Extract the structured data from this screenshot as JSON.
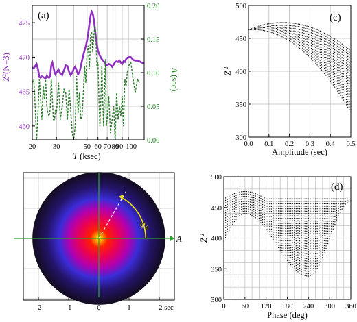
{
  "chart_data": [
    {
      "id": "a",
      "type": "line",
      "panel_label": "(a)",
      "xscale": "log",
      "xlim": [
        20,
        130
      ],
      "xlabel": "T (ksec)",
      "xlabel_parts": [
        "T",
        "(ksec)"
      ],
      "xticks": [
        20,
        30,
        40,
        50,
        60,
        70,
        80,
        90,
        100
      ],
      "xtick_labels": [
        "20",
        "",
        "30",
        "",
        "50",
        "60",
        "70",
        "80",
        "90100"
      ],
      "xtick_texts": [
        {
          "x": 20,
          "t": "20"
        },
        {
          "x": 30,
          "t": "30"
        },
        {
          "x": 50,
          "t": "50"
        },
        {
          "x": 60,
          "t": "60"
        },
        {
          "x": 70,
          "t": "70"
        },
        {
          "x": 80,
          "t": "80"
        },
        {
          "x": 90,
          "t": "90"
        },
        {
          "x": 100,
          "t": "100"
        }
      ],
      "ylim_left": [
        458,
        477.5
      ],
      "ylabel_left": "Z²(N=3)",
      "ylabel_left_parts": [
        "Z",
        "2",
        "(N=3)"
      ],
      "yticks_left": [
        460,
        465,
        470,
        475
      ],
      "ylim_right": [
        0,
        0.2
      ],
      "ylabel_right": "A (sec)",
      "ylabel_right_parts": [
        "A",
        "(sec)"
      ],
      "yticks_right": [
        0.0,
        0.05,
        0.1,
        0.15,
        0.2
      ],
      "ytick_right_labels": [
        "0.00",
        "0.05",
        "0.10",
        "0.15",
        "0.20"
      ],
      "colors": {
        "left_axis": "#8a2fb5",
        "right_axis": "#1f7a1f"
      },
      "series": [
        {
          "axis": "left",
          "style": "solid",
          "color": "#8e2fc0",
          "x": [
            20,
            20.5,
            21,
            21.5,
            22,
            22.5,
            23,
            23.5,
            24,
            24.5,
            25,
            25.5,
            26,
            26.5,
            27,
            27.5,
            28,
            28.5,
            29,
            29.5,
            30,
            31,
            32,
            33,
            34,
            35,
            36,
            37,
            38,
            39,
            40,
            41,
            42,
            43,
            44,
            45,
            46,
            47,
            48,
            49,
            50,
            51,
            52,
            53,
            54,
            55,
            56,
            57,
            58,
            59,
            60,
            62,
            64,
            66,
            68,
            70,
            72,
            74,
            76,
            78,
            80,
            82,
            84,
            86,
            88,
            90,
            92,
            94,
            96,
            98,
            100,
            104,
            108,
            112,
            116,
            120,
            125,
            130
          ],
          "y": [
            468.5,
            468.4,
            468.7,
            469,
            468.3,
            467.1,
            467.0,
            467.2,
            467.1,
            467.0,
            466.9,
            467.3,
            467.1,
            467.0,
            467.2,
            468.8,
            469.2,
            468.6,
            467.8,
            467.5,
            467.8,
            468.2,
            467.6,
            467.4,
            468.1,
            468.8,
            468.7,
            467.9,
            467.4,
            467.7,
            468.3,
            468.6,
            468.1,
            467.5,
            467.8,
            468.6,
            469.5,
            470.3,
            471.0,
            471.6,
            472.4,
            473.5,
            474.8,
            476.0,
            476.6,
            476.3,
            475.4,
            474.2,
            472.9,
            471.8,
            470.9,
            470.2,
            469.7,
            469.4,
            469.0,
            468.8,
            469.0,
            468.9,
            468.6,
            468.9,
            469.3,
            469.4,
            469.3,
            469.5,
            469.2,
            469.0,
            469.4,
            469.3,
            469.7,
            469.9,
            470.0,
            470.0,
            469.6,
            469.5,
            469.5,
            469.4,
            469.2,
            469.1
          ]
        },
        {
          "axis": "right",
          "style": "dashed",
          "color": "#2a7a2a",
          "x": [
            20,
            20.5,
            21,
            21.5,
            22,
            22.5,
            23,
            23.5,
            24,
            24.5,
            25,
            25.5,
            26,
            26.5,
            27,
            27.5,
            28,
            28.5,
            29,
            29.5,
            30,
            31,
            32,
            33,
            34,
            35,
            36,
            37,
            38,
            39,
            40,
            41,
            42,
            43,
            44,
            45,
            46,
            47,
            48,
            49,
            50,
            51,
            52,
            53,
            54,
            55,
            56,
            57,
            58,
            59,
            60,
            61,
            62,
            63,
            64,
            65,
            66,
            67,
            68,
            69,
            70,
            72,
            74,
            76,
            78,
            80,
            82,
            84,
            86,
            88,
            90,
            92,
            94,
            96,
            98,
            100,
            104,
            108,
            112,
            116,
            120
          ],
          "y": [
            0.085,
            0.09,
            0.05,
            0.0,
            0.04,
            0.09,
            0.06,
            0.03,
            0.08,
            0.06,
            0.09,
            0.05,
            0.04,
            0.035,
            0.045,
            0.09,
            0.06,
            0.03,
            0.03,
            0.045,
            0.04,
            0.085,
            0.03,
            0.05,
            0.075,
            0.07,
            0.03,
            0.075,
            0.045,
            0.01,
            0.0,
            0.02,
            0.095,
            0.04,
            0.07,
            0.03,
            0.035,
            0.07,
            0.11,
            0.085,
            0.13,
            0.14,
            0.105,
            0.155,
            0.16,
            0.13,
            0.155,
            0.17,
            0.15,
            0.11,
            0.115,
            0.06,
            0.02,
            0.06,
            0.11,
            0.06,
            0.02,
            0.08,
            0.12,
            0.02,
            0.03,
            0.065,
            0.01,
            0.03,
            0.05,
            0.0,
            0.07,
            0.03,
            0.05,
            0.035,
            0.065,
            0.02,
            0.09,
            0.08,
            0.1,
            0.11,
            0.115,
            0.09,
            0.07,
            0.09,
            0.085
          ]
        }
      ]
    },
    {
      "id": "b",
      "type": "heatmap",
      "panel_label": "(b)",
      "xlabel": "A",
      "angle_label": "ψ",
      "angle_label_sub": "0",
      "xticks": [
        -2,
        -1,
        0,
        1,
        2
      ],
      "xtick_labels": [
        "-2",
        "-1",
        "0",
        "1",
        "2 sec"
      ],
      "xlim": [
        -2.5,
        2.5
      ],
      "disk_radius": 2.2,
      "arc_radius": 1.55,
      "psi0_direction_deg": 60,
      "colormap": [
        "#ffff00",
        "#ff2000",
        "#e80058",
        "#b000b0",
        "#3b2cd8",
        "#24146a",
        "#120c1e"
      ]
    },
    {
      "id": "c",
      "type": "scatter",
      "panel_label": "(c)",
      "xlim": [
        0,
        0.5
      ],
      "ylim": [
        300,
        500
      ],
      "xlabel": "Amplitude (sec)",
      "ylabel": "Z²",
      "ylabel_parts": [
        "Z",
        "2"
      ],
      "xticks": [
        0,
        0.1,
        0.2,
        0.3,
        0.4,
        0.5
      ],
      "xtick_labels": [
        "0.0",
        "0.1",
        "0.2",
        "0.3",
        "0.4",
        "0.5"
      ],
      "yticks": [
        300,
        350,
        400,
        450,
        500
      ],
      "curves": {
        "upper_start": 463,
        "upper_peak": 474,
        "upper_peak_x": 0.16,
        "upper_end": 431,
        "lower_end": 338
      }
    },
    {
      "id": "d",
      "type": "scatter",
      "panel_label": "(d)",
      "xlim": [
        0,
        360
      ],
      "ylim": [
        300,
        500
      ],
      "xlabel": "Phase (deg)",
      "ylabel": "Z²",
      "ylabel_parts": [
        "Z",
        "2"
      ],
      "xticks": [
        0,
        60,
        120,
        180,
        240,
        300,
        360
      ],
      "yticks": [
        300,
        350,
        400,
        450,
        500
      ],
      "curves": {
        "upper_base": 464,
        "upper_peak": 476,
        "upper_peak_x": 60,
        "lower_start": 395,
        "lower_peak": 440,
        "lower_peak_x": 60,
        "lower_min": 338,
        "lower_min_x": 240
      }
    }
  ]
}
